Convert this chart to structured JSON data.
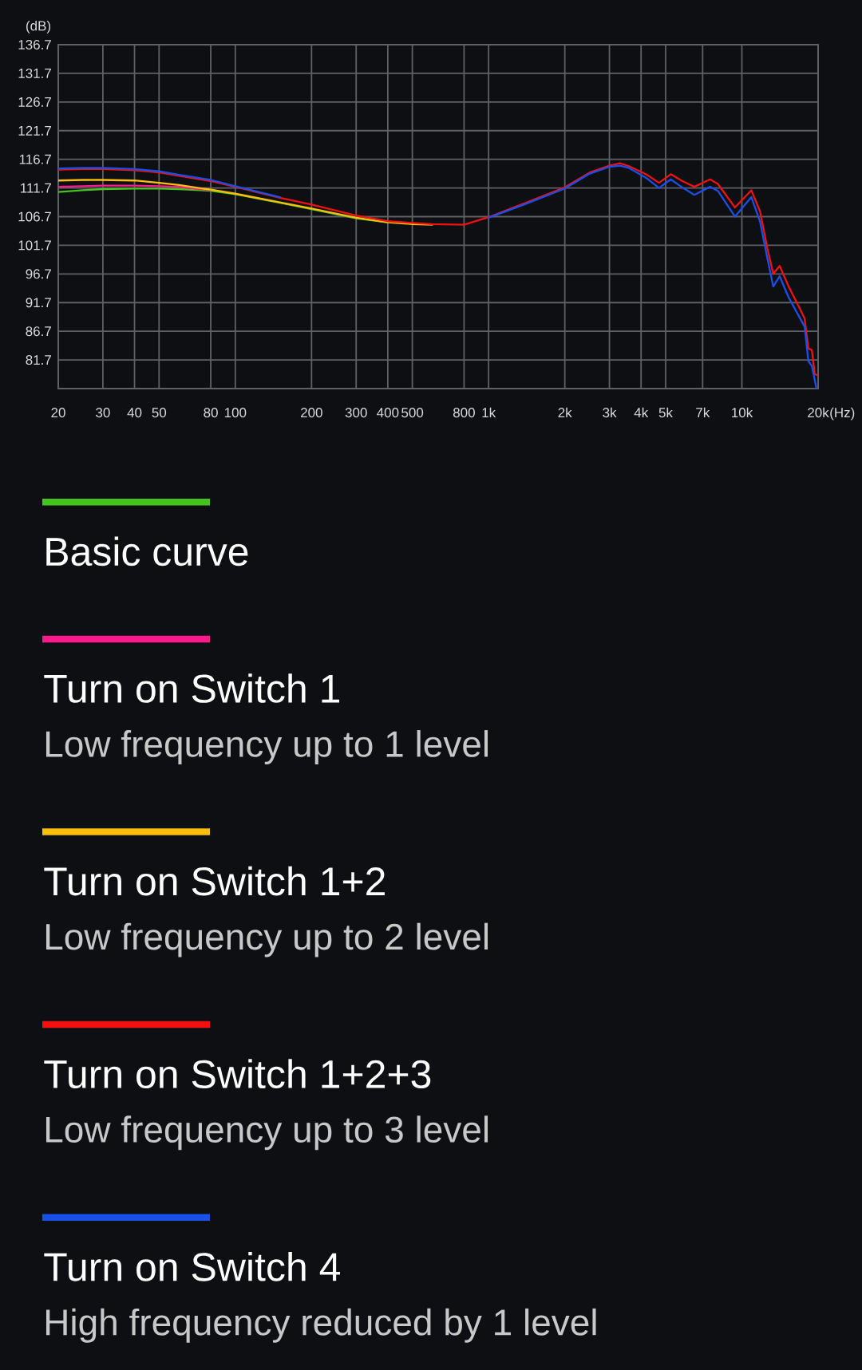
{
  "chart_data": {
    "type": "line",
    "ylabel": "(dB)",
    "xlabel": "(Hz)",
    "log": "x",
    "grid": true,
    "legend": "bottom",
    "x": [
      20,
      25,
      30,
      40,
      50,
      60,
      80,
      100,
      150,
      200,
      300,
      400,
      500,
      600,
      800,
      1000,
      1380,
      2000,
      2510,
      3000,
      3300,
      3580,
      4180,
      4710,
      5240,
      5770,
      6490,
      7490,
      8040,
      9390,
      10900,
      11800,
      12600,
      13300,
      14100,
      15300,
      17000,
      17700,
      18300,
      18900,
      19400,
      20000
    ],
    "xlim": [
      20,
      20000
    ],
    "xticks": [
      20,
      30,
      40,
      50,
      80,
      100,
      200,
      300,
      400,
      500,
      800,
      {
        "value": 1000,
        "label": "1k"
      },
      {
        "value": 2000,
        "label": "2k"
      },
      {
        "value": 3000,
        "label": "3k"
      },
      {
        "value": 4000,
        "label": "4k"
      },
      {
        "value": 5000,
        "label": "5k"
      },
      {
        "value": 7000,
        "label": "7k"
      },
      {
        "value": 10000,
        "label": "10k"
      },
      {
        "value": 20000,
        "label": "20k"
      }
    ],
    "ylim": [
      76.7,
      136.7
    ],
    "yticks": [
      81.7,
      86.7,
      91.7,
      96.7,
      101.7,
      106.7,
      111.7,
      116.7,
      121.7,
      126.7,
      131.7,
      136.7
    ],
    "series": [
      {
        "name": "Basic curve",
        "color": "#44c41c",
        "values": [
          111.0,
          111.3,
          111.5,
          111.6,
          111.6,
          111.5,
          111.2,
          110.6,
          109.1,
          108.0,
          106.4,
          105.7,
          null,
          null,
          null,
          null,
          null,
          null,
          null,
          null,
          null,
          null,
          null,
          null,
          null,
          null,
          null,
          null,
          null,
          null,
          null,
          null,
          null,
          null,
          null,
          null,
          null,
          null,
          null,
          null,
          null,
          null
        ]
      },
      {
        "name": "Turn on Switch 1",
        "color": "#ff1a8c",
        "values": [
          111.9,
          112.0,
          112.1,
          112.1,
          112.0,
          111.9,
          111.3,
          null,
          null,
          null,
          null,
          null,
          null,
          null,
          null,
          null,
          null,
          null,
          null,
          null,
          null,
          null,
          null,
          null,
          null,
          null,
          null,
          null,
          null,
          null,
          null,
          null,
          null,
          null,
          null,
          null,
          null,
          null,
          null,
          null,
          null,
          null
        ]
      },
      {
        "name": "Turn on Switch 1+2",
        "color": "#fbbf0b",
        "values": [
          113.0,
          113.1,
          113.1,
          113.0,
          112.6,
          112.2,
          111.4,
          110.7,
          109.2,
          108.1,
          106.5,
          105.7,
          105.4,
          105.3,
          null,
          null,
          null,
          null,
          null,
          null,
          null,
          null,
          null,
          null,
          null,
          null,
          null,
          null,
          null,
          null,
          null,
          null,
          null,
          null,
          null,
          null,
          null,
          null,
          null,
          null,
          null,
          null
        ]
      },
      {
        "name": "Turn on Switch 1+2+3",
        "color": "#f01212",
        "values": [
          114.9,
          115.0,
          115.0,
          114.8,
          114.4,
          113.8,
          112.9,
          111.9,
          110.0,
          108.8,
          106.9,
          105.9,
          105.6,
          105.4,
          105.3,
          106.6,
          109.0,
          111.8,
          114.4,
          115.6,
          116.0,
          115.5,
          114.1,
          112.6,
          114.1,
          113.0,
          111.9,
          113.2,
          112.4,
          108.3,
          111.3,
          107.6,
          101.2,
          96.7,
          98.1,
          94.5,
          90.5,
          88.9,
          83.7,
          83.4,
          79.2,
          79.0
        ]
      },
      {
        "name": "Turn on Switch 4",
        "color": "#1a4fea",
        "x": [
          20,
          25,
          30,
          40,
          50,
          60,
          80,
          100,
          150,
          200,
          300,
          400,
          500,
          600,
          800,
          1000,
          1380,
          2000,
          2510,
          3000,
          3300,
          3580,
          4180,
          4710,
          5240,
          5770,
          6490,
          7490,
          8040,
          9390,
          10900,
          11800,
          12600,
          13300,
          14100,
          15300,
          17000,
          17700,
          18300,
          18900,
          19400,
          19700
        ],
        "values": [
          115.1,
          115.2,
          115.2,
          115.0,
          114.6,
          114.0,
          113.1,
          112.0,
          110.1,
          null,
          null,
          null,
          null,
          null,
          null,
          106.5,
          108.8,
          111.6,
          114.2,
          115.4,
          115.6,
          115.2,
          113.5,
          111.7,
          113.2,
          111.9,
          110.5,
          111.9,
          111.2,
          106.7,
          110.1,
          105.8,
          99.5,
          94.5,
          96.3,
          92.6,
          88.9,
          87.5,
          81.5,
          80.6,
          78.2,
          76.7
        ]
      }
    ],
    "annotations": [
      "Low frequency up to 1 level",
      "Low frequency up to 2 level",
      "Low frequency up to 3 level",
      "High frequency reduced by 1 level"
    ]
  }
}
